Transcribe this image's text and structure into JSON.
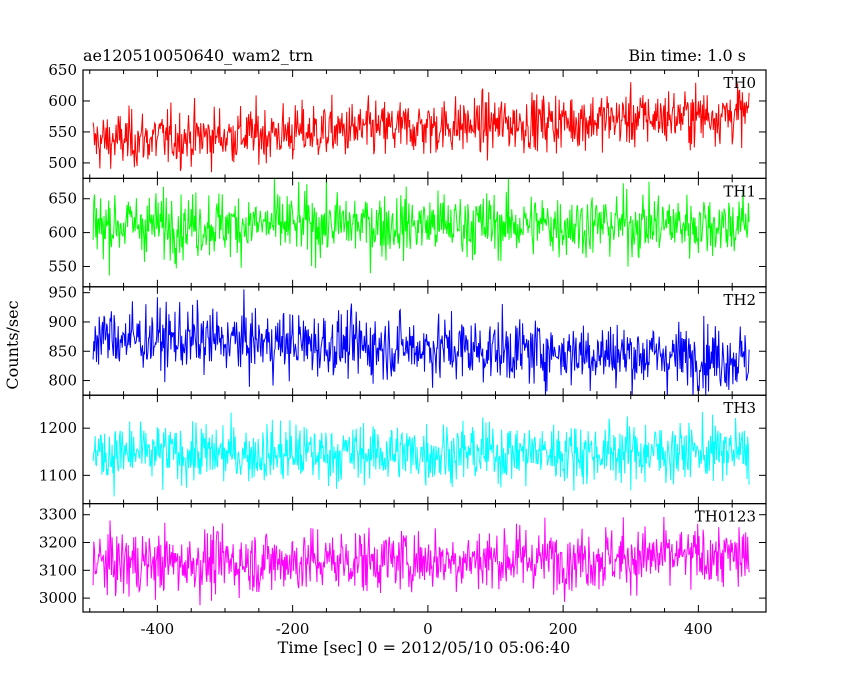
{
  "header": {
    "left_title": "ae120510050640_wam2_trn",
    "right_title": "Bin time: 1.0 s"
  },
  "chart_data": {
    "type": "line",
    "ylabel": "Counts/sec",
    "xlabel": "Time [sec] 0 = 2012/05/10 05:06:40",
    "x_range": [
      -495,
      475
    ],
    "xlim": [
      -510,
      500
    ],
    "x_ticks": [
      -400,
      -200,
      0,
      200,
      400
    ],
    "panels": [
      {
        "name": "TH0",
        "color": "#ff0000",
        "ylim": [
          475,
          650
        ],
        "y_ticks": [
          500,
          550,
          600,
          650
        ],
        "mean_start": 535,
        "mean_end": 580,
        "noise_sd": 23
      },
      {
        "name": "TH1",
        "color": "#00ff00",
        "ylim": [
          520,
          680
        ],
        "y_ticks": [
          550,
          600,
          650
        ],
        "mean_start": 612,
        "mean_end": 612,
        "noise_sd": 24
      },
      {
        "name": "TH2",
        "color": "#0000ff",
        "ylim": [
          775,
          960
        ],
        "y_ticks": [
          800,
          850,
          900,
          950
        ],
        "mean_start": 875,
        "mean_end": 838,
        "noise_sd": 28
      },
      {
        "name": "TH3",
        "color": "#00ffff",
        "ylim": [
          1040,
          1270
        ],
        "y_ticks": [
          1100,
          1200
        ],
        "mean_start": 1145,
        "mean_end": 1150,
        "noise_sd": 32
      },
      {
        "name": "TH0123",
        "color": "#ff00ff",
        "ylim": [
          2950,
          3340
        ],
        "y_ticks": [
          3000,
          3100,
          3200,
          3300
        ],
        "mean_start": 3125,
        "mean_end": 3150,
        "noise_sd": 58
      }
    ]
  }
}
